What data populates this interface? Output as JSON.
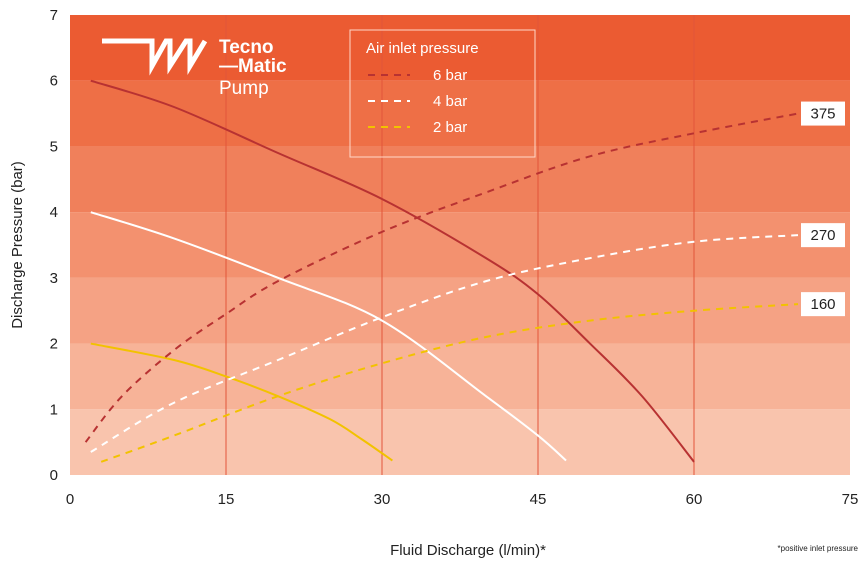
{
  "chart_data": {
    "type": "line",
    "xlabel": "Fluid Discharge (l/min)*",
    "ylabel": "Discharge Pressure (bar)",
    "xlim": [
      0,
      75
    ],
    "ylim": [
      0,
      7
    ],
    "x_ticks": [
      "0",
      "15",
      "30",
      "45",
      "60",
      "75"
    ],
    "y_ticks": [
      "0",
      "1",
      "2",
      "3",
      "4",
      "5",
      "6",
      "7"
    ],
    "grid": true,
    "footnote": "*positive inlet pressure",
    "legend": {
      "title": "Air inlet pressure",
      "position": "top-center",
      "entries": [
        "6 bar",
        "4 bar",
        "2 bar"
      ]
    },
    "series_colors": {
      "6 bar": "#b83232",
      "4 bar": "#ffffff",
      "2 bar": "#f2c200"
    },
    "series": [
      {
        "name": "6 bar",
        "style": "solid",
        "x": [
          2,
          10,
          20,
          30,
          40,
          45,
          50,
          55,
          60
        ],
        "y": [
          6.0,
          5.6,
          4.9,
          4.2,
          3.3,
          2.75,
          2.0,
          1.2,
          0.2
        ]
      },
      {
        "name": "4 bar",
        "style": "solid",
        "x": [
          2,
          10,
          20,
          30,
          40,
          45,
          47.7
        ],
        "y": [
          4.0,
          3.6,
          3.0,
          2.35,
          1.2,
          0.6,
          0.22
        ]
      },
      {
        "name": "2 bar",
        "style": "solid",
        "x": [
          2,
          10,
          15,
          20,
          25,
          28,
          31
        ],
        "y": [
          2.0,
          1.75,
          1.5,
          1.2,
          0.85,
          0.55,
          0.22
        ]
      },
      {
        "name": "6 bar",
        "style": "dashed",
        "end_label": "375",
        "x": [
          1.5,
          5,
          10,
          15,
          20,
          30,
          40,
          50,
          60,
          70
        ],
        "y": [
          0.5,
          1.2,
          1.9,
          2.45,
          2.95,
          3.7,
          4.3,
          4.85,
          5.2,
          5.5
        ]
      },
      {
        "name": "4 bar",
        "style": "dashed",
        "end_label": "270",
        "x": [
          2,
          10,
          20,
          30,
          40,
          50,
          60,
          70
        ],
        "y": [
          0.35,
          1.1,
          1.75,
          2.4,
          2.95,
          3.3,
          3.55,
          3.65
        ]
      },
      {
        "name": "2 bar",
        "style": "dashed",
        "end_label": "160",
        "x": [
          3,
          10,
          20,
          30,
          40,
          50,
          60,
          70
        ],
        "y": [
          0.2,
          0.6,
          1.2,
          1.7,
          2.1,
          2.35,
          2.5,
          2.6
        ]
      }
    ]
  },
  "logo": {
    "line1": "Tecno",
    "line2": "—Matic",
    "line3": "Pump"
  },
  "colors": {
    "bands": [
      "#f9c4ad",
      "#f7b398",
      "#f5a284",
      "#f3916f",
      "#f0805b",
      "#ee6f46",
      "#eb5b32"
    ],
    "grid": "#e2553a",
    "legend_border": "#ffd7c8"
  }
}
